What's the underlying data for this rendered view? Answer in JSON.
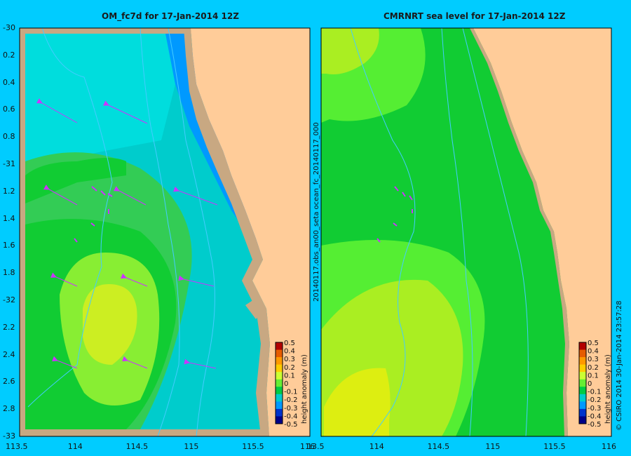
{
  "left_panel": {
    "title": "OM_fc7d  for 17-Jan-2014 12Z"
  },
  "right_panel": {
    "title": "CMRNRT sea level  for 17-Jan-2014 12Z",
    "side_label": "20140117.obs_an00_seta    ocean_fc_20140117_000"
  },
  "y_axis_labels": [
    "-30",
    "0.2",
    "0.4",
    "0.6",
    "0.8",
    "-31",
    "1.2",
    "1.4",
    "1.6",
    "1.8",
    "-32",
    "2.2",
    "2.4",
    "2.6",
    "2.8",
    "-33"
  ],
  "x_axis_labels": [
    "113.5",
    "114",
    "114.5",
    "115",
    "115.5",
    "116"
  ],
  "right_x_axis_labels": [
    "13.5",
    "114",
    "114.5",
    "115",
    "115.5",
    "116"
  ],
  "colorbar": {
    "ticks": [
      "0.5",
      "0.4",
      "0.3",
      "0.2",
      "0.1",
      "0",
      "-0.1",
      "-0.2",
      "-0.3",
      "-0.4",
      "-0.5"
    ],
    "label": "height anomaly (m)",
    "colors": [
      "#b30000",
      "#e65c00",
      "#ff9900",
      "#ffcc00",
      "#ccff33",
      "#66ee33",
      "#00cc44",
      "#00cccc",
      "#0099ff",
      "#0033cc",
      "#000088"
    ]
  },
  "copyright": "© CSIRO 2014   30-Jan-2014 23:57:28",
  "colors": {
    "background": "#00ccff",
    "land": "#ffcc99",
    "shelf": "#c8a882"
  }
}
